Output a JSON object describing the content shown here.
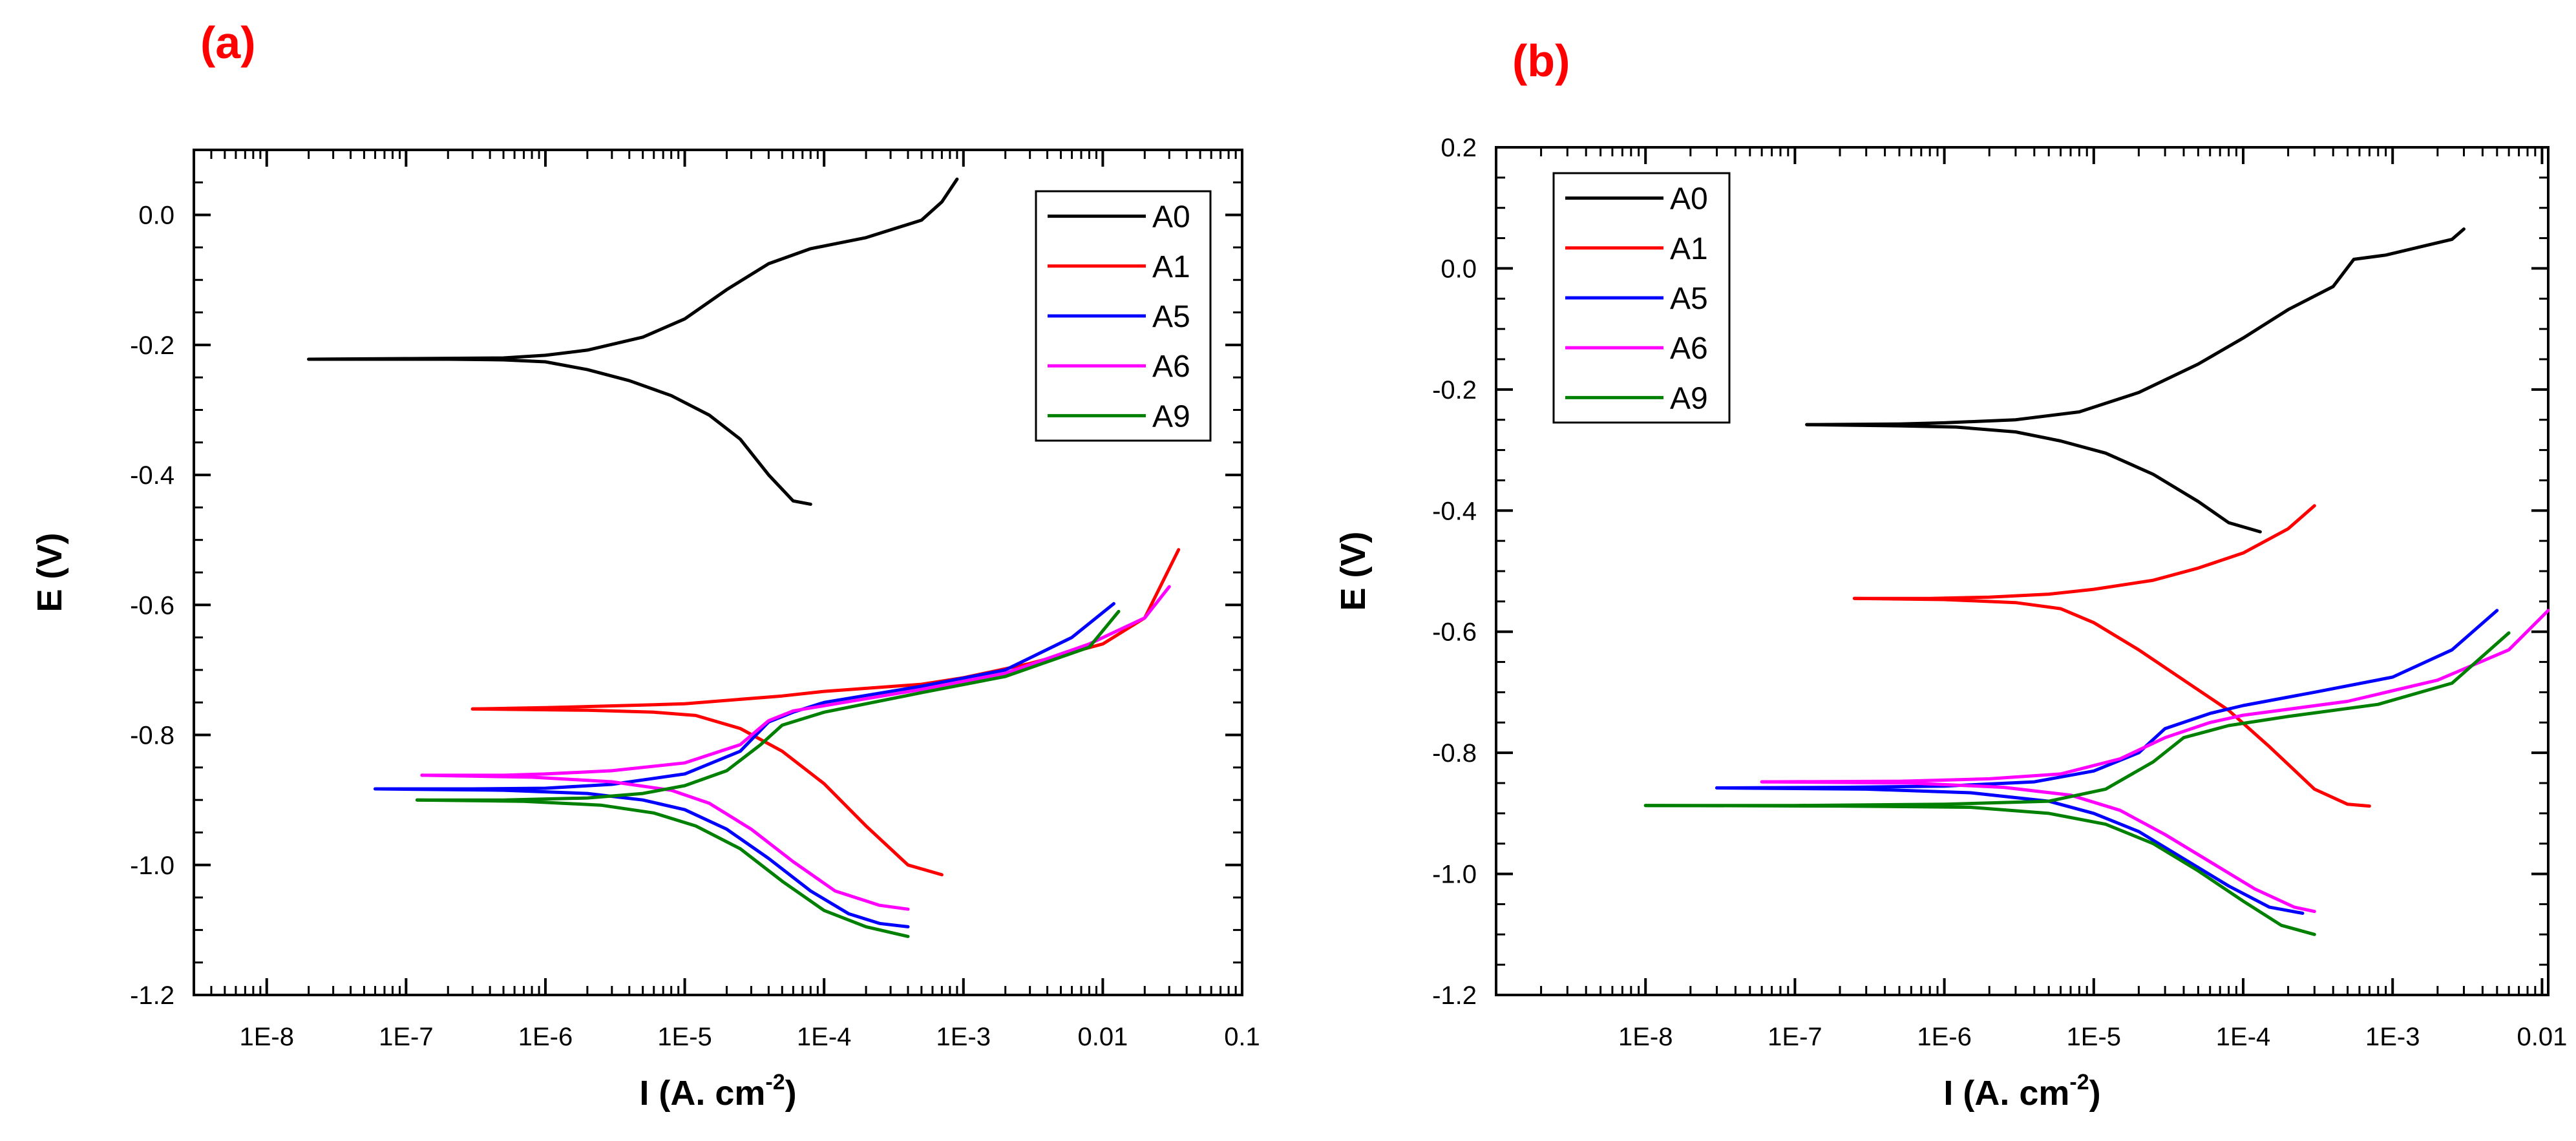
{
  "chart_data": [
    {
      "type": "line",
      "panel_label": "(a)",
      "xlabel": "I (A. cm",
      "xlabel_sup": "-2",
      "xlabel_close": ")",
      "ylabel": "E (V)",
      "x_scale": "log",
      "xlim": [
        3e-09,
        0.1
      ],
      "ylim": [
        -1.2,
        0.1
      ],
      "x_ticks": [
        1e-08,
        1e-07,
        1e-06,
        1e-05,
        0.0001,
        0.001,
        0.01,
        0.1
      ],
      "x_tick_labels": [
        "1E-8",
        "1E-7",
        "1E-6",
        "1E-5",
        "1E-4",
        "1E-3",
        "0.01",
        "0.1"
      ],
      "y_ticks": [
        -1.2,
        -1.0,
        -0.8,
        -0.6,
        -0.4,
        -0.2,
        0.0
      ],
      "y_tick_labels": [
        "-1.2",
        "-1.0",
        "-0.8",
        "-0.6",
        "-0.4",
        "-0.2",
        "0.0"
      ],
      "grid": false,
      "legend_position": "top-right",
      "series": [
        {
          "name": "A0",
          "color": "#000000",
          "anodic": [
            [
              2e-08,
              -0.222
            ],
            [
              1e-07,
              -0.221
            ],
            [
              5e-07,
              -0.22
            ],
            [
              1e-06,
              -0.216
            ],
            [
              2e-06,
              -0.208
            ],
            [
              5e-06,
              -0.188
            ],
            [
              1e-05,
              -0.16
            ],
            [
              2e-05,
              -0.115
            ],
            [
              4e-05,
              -0.075
            ],
            [
              8e-05,
              -0.052
            ],
            [
              0.0002,
              -0.035
            ],
            [
              0.0005,
              -0.008
            ],
            [
              0.0007,
              0.02
            ],
            [
              0.0009,
              0.055
            ]
          ],
          "cathodic": [
            [
              2e-08,
              -0.222
            ],
            [
              2e-07,
              -0.222
            ],
            [
              5e-07,
              -0.223
            ],
            [
              1e-06,
              -0.226
            ],
            [
              2e-06,
              -0.238
            ],
            [
              4e-06,
              -0.255
            ],
            [
              8e-06,
              -0.278
            ],
            [
              1.5e-05,
              -0.308
            ],
            [
              2.5e-05,
              -0.345
            ],
            [
              4e-05,
              -0.4
            ],
            [
              6e-05,
              -0.44
            ],
            [
              8e-05,
              -0.445
            ]
          ]
        },
        {
          "name": "A1",
          "color": "#ff0000",
          "anodic": [
            [
              3e-07,
              -0.76
            ],
            [
              1e-06,
              -0.758
            ],
            [
              5e-06,
              -0.754
            ],
            [
              1e-05,
              -0.752
            ],
            [
              5e-05,
              -0.74
            ],
            [
              0.0001,
              -0.733
            ],
            [
              0.0005,
              -0.722
            ],
            [
              0.001,
              -0.712
            ],
            [
              0.003,
              -0.69
            ],
            [
              0.01,
              -0.66
            ],
            [
              0.02,
              -0.62
            ],
            [
              0.035,
              -0.515
            ]
          ],
          "cathodic": [
            [
              3e-07,
              -0.76
            ],
            [
              2e-06,
              -0.762
            ],
            [
              6e-06,
              -0.765
            ],
            [
              1.2e-05,
              -0.77
            ],
            [
              2.5e-05,
              -0.79
            ],
            [
              5e-05,
              -0.825
            ],
            [
              0.0001,
              -0.875
            ],
            [
              0.0002,
              -0.94
            ],
            [
              0.0004,
              -1.0
            ],
            [
              0.0007,
              -1.015
            ]
          ]
        },
        {
          "name": "A5",
          "color": "#0000ff",
          "anodic": [
            [
              6e-08,
              -0.883
            ],
            [
              3e-07,
              -0.883
            ],
            [
              1e-06,
              -0.882
            ],
            [
              3e-06,
              -0.876
            ],
            [
              1e-05,
              -0.86
            ],
            [
              2.5e-05,
              -0.825
            ],
            [
              4e-05,
              -0.78
            ],
            [
              6e-05,
              -0.765
            ],
            [
              0.0001,
              -0.75
            ],
            [
              0.0005,
              -0.725
            ],
            [
              0.002,
              -0.7
            ],
            [
              0.006,
              -0.65
            ],
            [
              0.012,
              -0.598
            ]
          ],
          "cathodic": [
            [
              6e-08,
              -0.883
            ],
            [
              5e-07,
              -0.885
            ],
            [
              2e-06,
              -0.89
            ],
            [
              5e-06,
              -0.9
            ],
            [
              1e-05,
              -0.915
            ],
            [
              2e-05,
              -0.945
            ],
            [
              4e-05,
              -0.99
            ],
            [
              8e-05,
              -1.04
            ],
            [
              0.00015,
              -1.075
            ],
            [
              0.00025,
              -1.09
            ],
            [
              0.0004,
              -1.095
            ]
          ]
        },
        {
          "name": "A6",
          "color": "#ff00ff",
          "anodic": [
            [
              1.3e-07,
              -0.862
            ],
            [
              5e-07,
              -0.862
            ],
            [
              1e-06,
              -0.86
            ],
            [
              3e-06,
              -0.855
            ],
            [
              1e-05,
              -0.843
            ],
            [
              2.5e-05,
              -0.815
            ],
            [
              4e-05,
              -0.778
            ],
            [
              6e-05,
              -0.763
            ],
            [
              0.0001,
              -0.755
            ],
            [
              0.0005,
              -0.73
            ],
            [
              0.002,
              -0.705
            ],
            [
              0.008,
              -0.66
            ],
            [
              0.02,
              -0.62
            ],
            [
              0.03,
              -0.572
            ]
          ],
          "cathodic": [
            [
              1.3e-07,
              -0.862
            ],
            [
              8e-07,
              -0.865
            ],
            [
              3e-06,
              -0.872
            ],
            [
              8e-06,
              -0.885
            ],
            [
              1.5e-05,
              -0.905
            ],
            [
              3e-05,
              -0.945
            ],
            [
              6e-05,
              -0.995
            ],
            [
              0.00012,
              -1.04
            ],
            [
              0.00025,
              -1.062
            ],
            [
              0.0004,
              -1.068
            ]
          ]
        },
        {
          "name": "A9",
          "color": "#008000",
          "anodic": [
            [
              1.2e-07,
              -0.9
            ],
            [
              5e-07,
              -0.9
            ],
            [
              2e-06,
              -0.897
            ],
            [
              5e-06,
              -0.89
            ],
            [
              1e-05,
              -0.878
            ],
            [
              2e-05,
              -0.855
            ],
            [
              3.5e-05,
              -0.815
            ],
            [
              5e-05,
              -0.785
            ],
            [
              0.0001,
              -0.765
            ],
            [
              0.0005,
              -0.735
            ],
            [
              0.002,
              -0.71
            ],
            [
              0.008,
              -0.665
            ],
            [
              0.013,
              -0.61
            ]
          ],
          "cathodic": [
            [
              1.2e-07,
              -0.9
            ],
            [
              7e-07,
              -0.902
            ],
            [
              2.5e-06,
              -0.908
            ],
            [
              6e-06,
              -0.92
            ],
            [
              1.2e-05,
              -0.94
            ],
            [
              2.5e-05,
              -0.975
            ],
            [
              5e-05,
              -1.025
            ],
            [
              0.0001,
              -1.07
            ],
            [
              0.0002,
              -1.095
            ],
            [
              0.0004,
              -1.11
            ]
          ]
        }
      ]
    },
    {
      "type": "line",
      "panel_label": "(b)",
      "xlabel": "I (A. cm",
      "xlabel_sup": "-2",
      "xlabel_close": ")",
      "ylabel": "E (V)",
      "x_scale": "log",
      "xlim": [
        1e-09,
        0.011
      ],
      "ylim": [
        -1.2,
        0.2
      ],
      "x_ticks": [
        1e-08,
        1e-07,
        1e-06,
        1e-05,
        0.0001,
        0.001,
        0.01
      ],
      "x_tick_labels": [
        "1E-8",
        "1E-7",
        "1E-6",
        "1E-5",
        "1E-4",
        "1E-3",
        "0.01"
      ],
      "y_ticks": [
        -1.2,
        -1.0,
        -0.8,
        -0.6,
        -0.4,
        -0.2,
        0.0,
        0.2
      ],
      "y_tick_labels": [
        "-1.2",
        "-1.0",
        "-0.8",
        "-0.6",
        "-0.4",
        "-0.2",
        "0.0",
        "0.2"
      ],
      "grid": false,
      "legend_position": "top-left",
      "series": [
        {
          "name": "A0",
          "color": "#000000",
          "anodic": [
            [
              1.2e-07,
              -0.258
            ],
            [
              5e-07,
              -0.257
            ],
            [
              1e-06,
              -0.255
            ],
            [
              3e-06,
              -0.25
            ],
            [
              8e-06,
              -0.237
            ],
            [
              2e-05,
              -0.205
            ],
            [
              5e-05,
              -0.158
            ],
            [
              0.0001,
              -0.115
            ],
            [
              0.0002,
              -0.068
            ],
            [
              0.0004,
              -0.03
            ],
            [
              0.00055,
              0.015
            ],
            [
              0.0009,
              0.022
            ],
            [
              0.0015,
              0.035
            ],
            [
              0.0025,
              0.048
            ],
            [
              0.003,
              0.065
            ]
          ],
          "cathodic": [
            [
              1.2e-07,
              -0.258
            ],
            [
              5e-07,
              -0.26
            ],
            [
              1.2e-06,
              -0.262
            ],
            [
              3e-06,
              -0.27
            ],
            [
              6e-06,
              -0.285
            ],
            [
              1.2e-05,
              -0.305
            ],
            [
              2.5e-05,
              -0.34
            ],
            [
              5e-05,
              -0.385
            ],
            [
              8e-05,
              -0.42
            ],
            [
              0.00013,
              -0.435
            ]
          ]
        },
        {
          "name": "A1",
          "color": "#ff0000",
          "anodic": [
            [
              2.5e-07,
              -0.545
            ],
            [
              8e-07,
              -0.545
            ],
            [
              2e-06,
              -0.543
            ],
            [
              5e-06,
              -0.538
            ],
            [
              1e-05,
              -0.53
            ],
            [
              2.5e-05,
              -0.515
            ],
            [
              5e-05,
              -0.495
            ],
            [
              0.0001,
              -0.47
            ],
            [
              0.0002,
              -0.43
            ],
            [
              0.0003,
              -0.392
            ]
          ],
          "cathodic": [
            [
              2.5e-07,
              -0.545
            ],
            [
              1e-06,
              -0.547
            ],
            [
              3e-06,
              -0.552
            ],
            [
              6e-06,
              -0.562
            ],
            [
              1e-05,
              -0.585
            ],
            [
              2e-05,
              -0.63
            ],
            [
              4e-05,
              -0.68
            ],
            [
              8e-05,
              -0.73
            ],
            [
              0.00015,
              -0.79
            ],
            [
              0.0003,
              -0.86
            ],
            [
              0.0005,
              -0.885
            ],
            [
              0.0007,
              -0.888
            ]
          ]
        },
        {
          "name": "A5",
          "color": "#0000ff",
          "anodic": [
            [
              3e-08,
              -0.858
            ],
            [
              2e-07,
              -0.857
            ],
            [
              1e-06,
              -0.855
            ],
            [
              4e-06,
              -0.848
            ],
            [
              1e-05,
              -0.83
            ],
            [
              2e-05,
              -0.8
            ],
            [
              3e-05,
              -0.76
            ],
            [
              6e-05,
              -0.735
            ],
            [
              0.0001,
              -0.722
            ],
            [
              0.0003,
              -0.7
            ],
            [
              0.001,
              -0.675
            ],
            [
              0.0025,
              -0.63
            ],
            [
              0.005,
              -0.565
            ]
          ],
          "cathodic": [
            [
              3e-08,
              -0.858
            ],
            [
              3e-07,
              -0.86
            ],
            [
              1.5e-06,
              -0.866
            ],
            [
              5e-06,
              -0.88
            ],
            [
              1e-05,
              -0.9
            ],
            [
              2e-05,
              -0.93
            ],
            [
              4e-05,
              -0.975
            ],
            [
              8e-05,
              -1.02
            ],
            [
              0.00015,
              -1.055
            ],
            [
              0.00025,
              -1.065
            ]
          ]
        },
        {
          "name": "A6",
          "color": "#ff00ff",
          "anodic": [
            [
              6e-08,
              -0.848
            ],
            [
              5e-07,
              -0.847
            ],
            [
              2e-06,
              -0.843
            ],
            [
              6e-06,
              -0.835
            ],
            [
              1.5e-05,
              -0.81
            ],
            [
              3e-05,
              -0.775
            ],
            [
              6e-05,
              -0.75
            ],
            [
              0.0001,
              -0.738
            ],
            [
              0.0005,
              -0.715
            ],
            [
              0.002,
              -0.68
            ],
            [
              0.006,
              -0.63
            ],
            [
              0.011,
              -0.565
            ]
          ],
          "cathodic": [
            [
              6e-08,
              -0.848
            ],
            [
              6e-07,
              -0.85
            ],
            [
              2.5e-06,
              -0.857
            ],
            [
              7e-06,
              -0.87
            ],
            [
              1.5e-05,
              -0.895
            ],
            [
              3e-05,
              -0.935
            ],
            [
              6e-05,
              -0.98
            ],
            [
              0.00012,
              -1.025
            ],
            [
              0.00022,
              -1.055
            ],
            [
              0.0003,
              -1.062
            ]
          ]
        },
        {
          "name": "A9",
          "color": "#008000",
          "anodic": [
            [
              1e-08,
              -0.887
            ],
            [
              1e-07,
              -0.887
            ],
            [
              1e-06,
              -0.885
            ],
            [
              5e-06,
              -0.88
            ],
            [
              1.2e-05,
              -0.86
            ],
            [
              2.5e-05,
              -0.815
            ],
            [
              4e-05,
              -0.775
            ],
            [
              8e-05,
              -0.755
            ],
            [
              0.0002,
              -0.74
            ],
            [
              0.0008,
              -0.72
            ],
            [
              0.0025,
              -0.685
            ],
            [
              0.006,
              -0.602
            ]
          ],
          "cathodic": [
            [
              1e-08,
              -0.887
            ],
            [
              2e-07,
              -0.888
            ],
            [
              1.5e-06,
              -0.89
            ],
            [
              5e-06,
              -0.9
            ],
            [
              1.2e-05,
              -0.918
            ],
            [
              2.5e-05,
              -0.95
            ],
            [
              5e-05,
              -0.995
            ],
            [
              0.0001,
              -1.045
            ],
            [
              0.00018,
              -1.085
            ],
            [
              0.0003,
              -1.1
            ]
          ]
        }
      ]
    }
  ]
}
